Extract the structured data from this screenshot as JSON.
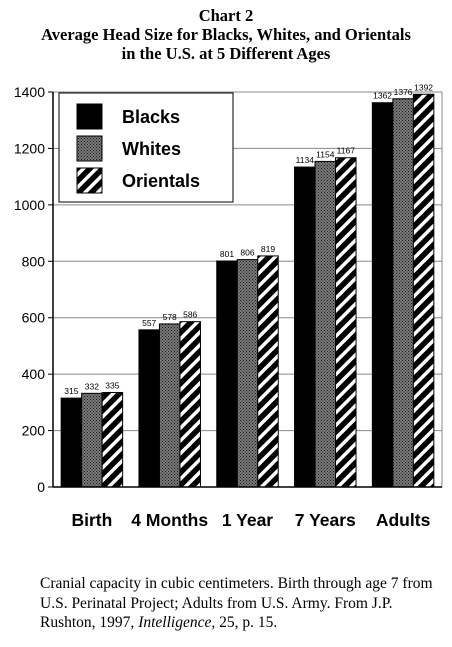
{
  "title": {
    "line1": "Chart 2",
    "line2": "Average Head Size for Blacks, Whites, and Orientals",
    "line3": "in the U.S. at 5 Different Ages"
  },
  "caption": {
    "text1": "Cranial capacity in cubic centimeters.  Birth through age 7 from U.S. Perinatal Project; Adults from U.S. Army.  From J.P. Rushton, 1997, ",
    "journal": "Intelligence",
    "text2": ", 25, p. 15."
  },
  "chart_data": {
    "type": "bar",
    "categories": [
      "Birth",
      "4 Months",
      "1 Year",
      "7 Years",
      "Adults"
    ],
    "series": [
      {
        "name": "Blacks",
        "values": [
          315,
          557,
          801,
          1134,
          1362
        ],
        "pattern": "solid",
        "color": "#000000"
      },
      {
        "name": "Whites",
        "values": [
          332,
          578,
          806,
          1154,
          1376
        ],
        "pattern": "dotted",
        "color": "#555555"
      },
      {
        "name": "Orientals",
        "values": [
          335,
          586,
          819,
          1167,
          1392
        ],
        "pattern": "diagonal-stripes",
        "color": "#000000"
      }
    ],
    "ylim": [
      0,
      1400
    ],
    "yticks": [
      0,
      200,
      400,
      600,
      800,
      1000,
      1200,
      1400
    ],
    "xlabel": "",
    "ylabel": "",
    "grid": true,
    "legend_position": "top-left",
    "data_labels": true
  }
}
